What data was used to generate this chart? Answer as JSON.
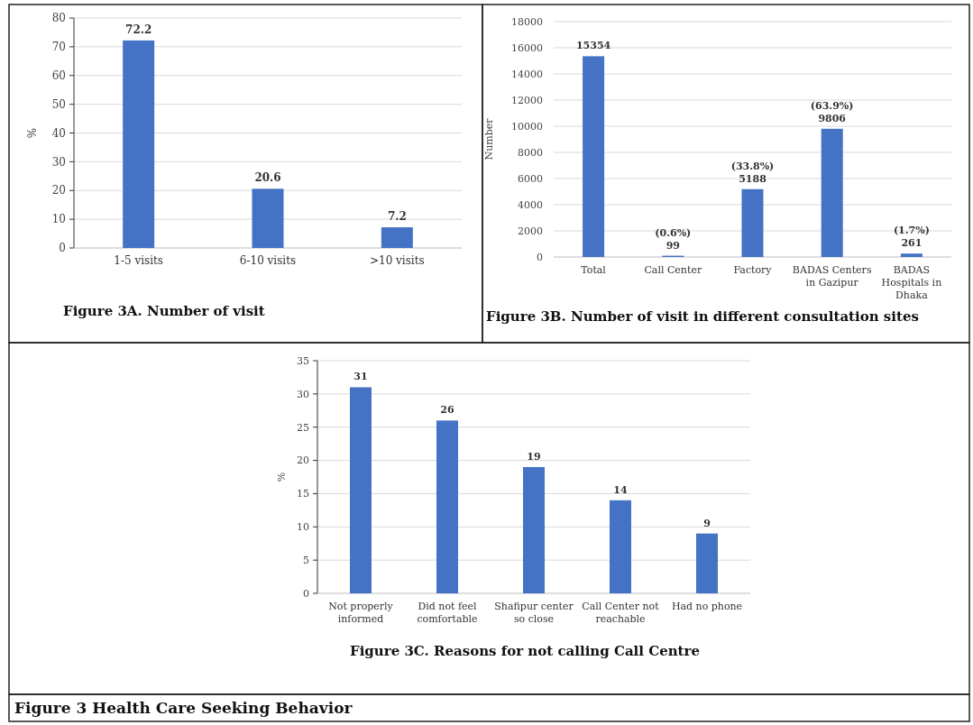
{
  "chart_data": [
    {
      "type": "bar",
      "title": "Figure 3A. Number of visit",
      "ylabel": "%",
      "categories": [
        "1-5 visits",
        "6-10 visits",
        ">10 visits"
      ],
      "values": [
        72.2,
        20.6,
        7.2
      ],
      "color": "#4472c4",
      "ylim": [
        0,
        80
      ],
      "yticks": [
        0,
        10,
        20,
        30,
        40,
        50,
        60,
        70,
        80
      ],
      "grid": "y",
      "data_labels": true
    },
    {
      "type": "bar",
      "title": "Figure 3B. Number of visit in different consultation sites",
      "ylabel": "Number",
      "categories": [
        "Total",
        "Call Center",
        "Factory",
        "BADAS Centers in Gazipur",
        "BADAS Hospitals in Dhaka"
      ],
      "values": [
        15354,
        99,
        5188,
        9806,
        261
      ],
      "value_labels": [
        "15354",
        "(0.6%)\n99",
        "(33.8%)\n5188",
        "(63.9%)\n9806",
        "(1.7%)\n261"
      ],
      "color": "#4472c4",
      "ylim": [
        0,
        18000
      ],
      "yticks": [
        0,
        2000,
        4000,
        6000,
        8000,
        10000,
        12000,
        14000,
        16000,
        18000
      ],
      "grid": "y"
    },
    {
      "type": "bar",
      "title": "Figure 3C. Reasons for not calling Call Centre",
      "ylabel": "%",
      "categories": [
        "Not properly informed",
        "Did not feel comfortable",
        "Shafipur center so close",
        "Call Center not reachable",
        "Had no phone"
      ],
      "values": [
        31,
        26,
        19,
        14,
        9
      ],
      "color": "#4472c4",
      "ylim": [
        0,
        35
      ],
      "yticks": [
        0,
        5,
        10,
        15,
        20,
        25,
        30,
        35
      ],
      "grid": "y",
      "data_labels": true,
      "annotations": [
        "Figure 3 Health Care Seeking Behavior"
      ]
    }
  ]
}
